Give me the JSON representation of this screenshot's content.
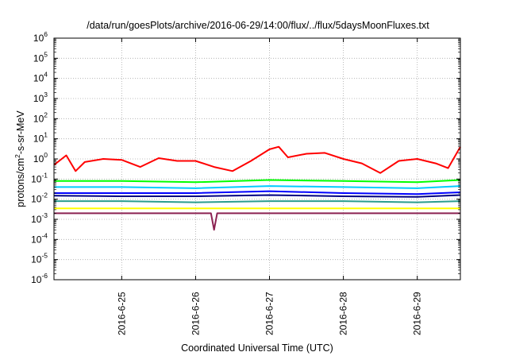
{
  "chart_data": {
    "type": "line",
    "title": "/data/run/goesPlots/archive/2016-06-29/14:00/flux/../flux/5daysMoonFluxes.txt",
    "xlabel": "Coordinated Universal Time (UTC)",
    "ylabel_prefix": "protons/cm",
    "ylabel_sup": "2",
    "ylabel_suffix": "-s-sr-MeV",
    "yscale": "log",
    "ylim": [
      1e-06,
      1000000.0
    ],
    "y_ticks": [
      {
        "base": "10",
        "exp": "-6",
        "value": 1e-06
      },
      {
        "base": "10",
        "exp": "-5",
        "value": 1e-05
      },
      {
        "base": "10",
        "exp": "-4",
        "value": 0.0001
      },
      {
        "base": "10",
        "exp": "-3",
        "value": 0.001
      },
      {
        "base": "10",
        "exp": "-2",
        "value": 0.01
      },
      {
        "base": "10",
        "exp": "-1",
        "value": 0.1
      },
      {
        "base": "10",
        "exp": "0",
        "value": 1
      },
      {
        "base": "10",
        "exp": "1",
        "value": 10
      },
      {
        "base": "10",
        "exp": "2",
        "value": 100
      },
      {
        "base": "10",
        "exp": "3",
        "value": 1000
      },
      {
        "base": "10",
        "exp": "4",
        "value": 10000
      },
      {
        "base": "10",
        "exp": "5",
        "value": 100000
      },
      {
        "base": "10",
        "exp": "6",
        "value": 1000000
      }
    ],
    "xlim": [
      "2016-06-24T02:00",
      "2016-06-29T14:00"
    ],
    "x_ticks": [
      {
        "label": "2016-6-25",
        "value": "2016-06-25T00:00"
      },
      {
        "label": "2016-6-26",
        "value": "2016-06-26T00:00"
      },
      {
        "label": "2016-6-27",
        "value": "2016-06-27T00:00"
      },
      {
        "label": "2016-6-28",
        "value": "2016-06-28T00:00"
      },
      {
        "label": "2016-6-29",
        "value": "2016-06-29T00:00"
      }
    ],
    "grid": true,
    "legend": "none",
    "series": [
      {
        "color": "#ff0000",
        "x": [
          "2016-06-24T02:00",
          "2016-06-24T06:00",
          "2016-06-24T09:00",
          "2016-06-24T12:00",
          "2016-06-24T18:00",
          "2016-06-25T00:00",
          "2016-06-25T06:00",
          "2016-06-25T12:00",
          "2016-06-25T18:00",
          "2016-06-26T00:00",
          "2016-06-26T06:00",
          "2016-06-26T12:00",
          "2016-06-26T18:00",
          "2016-06-27T00:00",
          "2016-06-27T03:00",
          "2016-06-27T06:00",
          "2016-06-27T12:00",
          "2016-06-27T18:00",
          "2016-06-28T00:00",
          "2016-06-28T06:00",
          "2016-06-28T12:00",
          "2016-06-28T18:00",
          "2016-06-29T00:00",
          "2016-06-29T06:00",
          "2016-06-29T10:00",
          "2016-06-29T14:00"
        ],
        "y": [
          0.5,
          1.5,
          0.25,
          0.7,
          1.0,
          0.9,
          0.4,
          1.1,
          0.8,
          0.8,
          0.4,
          0.25,
          0.8,
          3.0,
          4.0,
          1.2,
          1.8,
          2.0,
          1.0,
          0.6,
          0.2,
          0.8,
          1.0,
          0.6,
          0.35,
          4.0
        ]
      },
      {
        "color": "#00ff00",
        "x": [
          "2016-06-24T02:00",
          "2016-06-25T00:00",
          "2016-06-26T00:00",
          "2016-06-27T00:00",
          "2016-06-28T00:00",
          "2016-06-29T00:00",
          "2016-06-29T14:00"
        ],
        "y": [
          0.08,
          0.08,
          0.07,
          0.09,
          0.08,
          0.07,
          0.09
        ]
      },
      {
        "color": "#00ccff",
        "x": [
          "2016-06-24T02:00",
          "2016-06-25T00:00",
          "2016-06-26T00:00",
          "2016-06-27T00:00",
          "2016-06-28T00:00",
          "2016-06-29T00:00",
          "2016-06-29T14:00"
        ],
        "y": [
          0.04,
          0.04,
          0.035,
          0.045,
          0.04,
          0.035,
          0.045
        ]
      },
      {
        "color": "#0000ff",
        "x": [
          "2016-06-24T02:00",
          "2016-06-25T00:00",
          "2016-06-26T00:00",
          "2016-06-27T00:00",
          "2016-06-28T00:00",
          "2016-06-29T00:00",
          "2016-06-29T14:00"
        ],
        "y": [
          0.02,
          0.02,
          0.02,
          0.025,
          0.02,
          0.018,
          0.022
        ]
      },
      {
        "color": "#000080",
        "x": [
          "2016-06-24T02:00",
          "2016-06-25T00:00",
          "2016-06-26T00:00",
          "2016-06-27T00:00",
          "2016-06-28T00:00",
          "2016-06-29T00:00",
          "2016-06-29T14:00"
        ],
        "y": [
          0.015,
          0.014,
          0.014,
          0.016,
          0.014,
          0.013,
          0.016
        ]
      },
      {
        "color": "#2a9d8f",
        "x": [
          "2016-06-24T02:00",
          "2016-06-25T00:00",
          "2016-06-26T00:00",
          "2016-06-27T00:00",
          "2016-06-28T00:00",
          "2016-06-29T00:00",
          "2016-06-29T14:00"
        ],
        "y": [
          0.008,
          0.008,
          0.007,
          0.008,
          0.008,
          0.007,
          0.008
        ]
      },
      {
        "color": "#ffff00",
        "x": [
          "2016-06-24T02:00",
          "2016-06-25T00:00",
          "2016-06-26T00:00",
          "2016-06-27T00:00",
          "2016-06-28T00:00",
          "2016-06-29T00:00",
          "2016-06-29T14:00"
        ],
        "y": [
          0.0035,
          0.0035,
          0.0035,
          0.0035,
          0.0035,
          0.0035,
          0.0035
        ]
      },
      {
        "color": "#8b2252",
        "x": [
          "2016-06-24T02:00",
          "2016-06-25T00:00",
          "2016-06-26T00:00",
          "2016-06-26T05:00",
          "2016-06-26T06:00",
          "2016-06-26T07:00",
          "2016-06-27T00:00",
          "2016-06-28T00:00",
          "2016-06-29T00:00",
          "2016-06-29T14:00"
        ],
        "y": [
          0.002,
          0.002,
          0.002,
          0.002,
          0.0003,
          0.002,
          0.002,
          0.002,
          0.002,
          0.002
        ]
      }
    ]
  }
}
